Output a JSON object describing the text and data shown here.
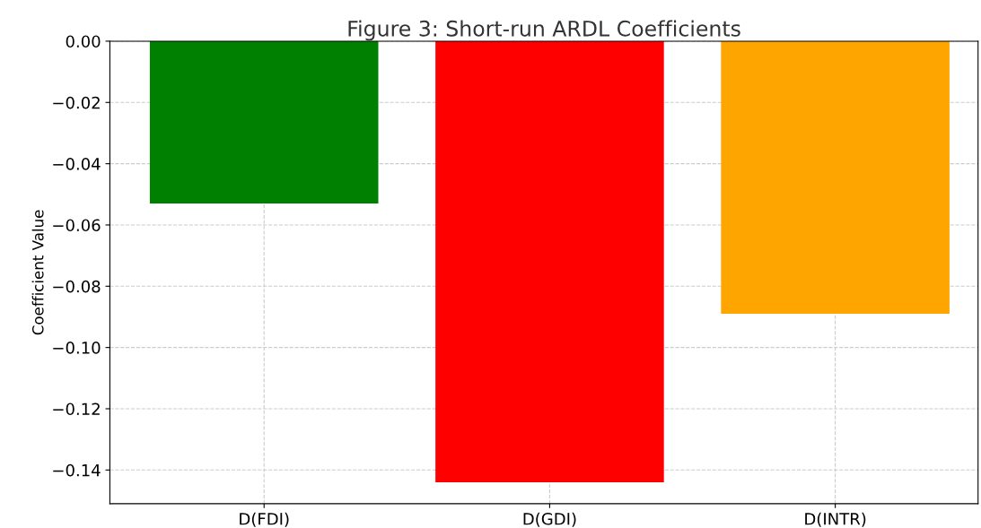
{
  "chart_data": {
    "type": "bar",
    "title": "Figure 3: Short-run ARDL Coefficients",
    "ylabel": "Coefficient Value",
    "categories": [
      "D(FDI)",
      "D(GDI)",
      "D(INTR)"
    ],
    "values": [
      -0.053,
      -0.144,
      -0.089
    ],
    "colors": [
      "#008000",
      "#ff0000",
      "#ffa500"
    ],
    "ylim": [
      -0.151,
      0
    ],
    "yticks": [
      {
        "value": 0,
        "label": "0.00"
      },
      {
        "value": -0.02,
        "label": "−0.02"
      },
      {
        "value": -0.04,
        "label": "−0.04"
      },
      {
        "value": -0.06,
        "label": "−0.06"
      },
      {
        "value": -0.08,
        "label": "−0.08"
      },
      {
        "value": -0.1,
        "label": "−0.10"
      },
      {
        "value": -0.12,
        "label": "−0.12"
      },
      {
        "value": -0.14,
        "label": "−0.14"
      }
    ],
    "grid": true
  }
}
